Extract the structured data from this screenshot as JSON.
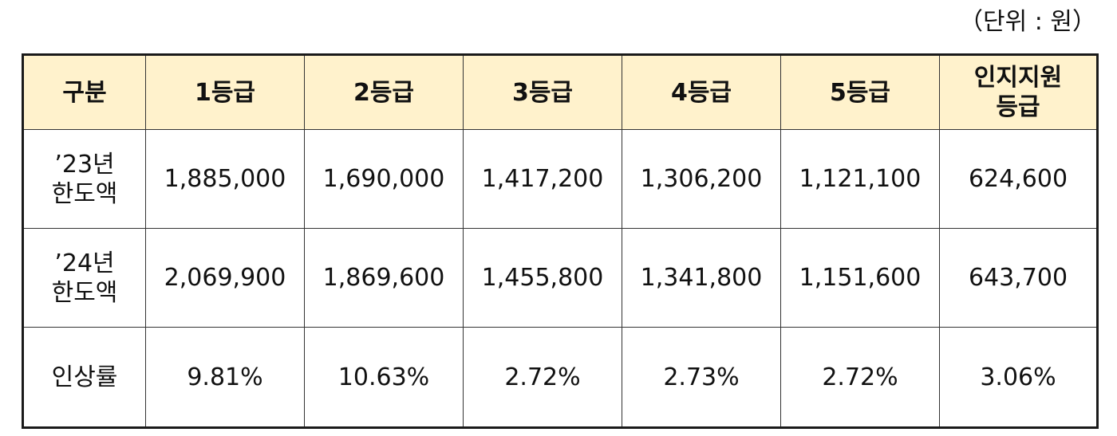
{
  "unit_note": "（단위 : 원）",
  "table": {
    "headers": [
      "구분",
      "1등급",
      "2등급",
      "3등급",
      "4등급",
      "5등급",
      "인지지원\n등급"
    ],
    "rows": [
      {
        "label": "’23년\n한도액",
        "cells": [
          "1,885,000",
          "1,690,000",
          "1,417,200",
          "1,306,200",
          "1,121,100",
          "624,600"
        ]
      },
      {
        "label": "’24년\n한도액",
        "cells": [
          "2,069,900",
          "1,869,600",
          "1,455,800",
          "1,341,800",
          "1,151,600",
          "643,700"
        ]
      },
      {
        "label": "인상률",
        "cells": [
          "9.81%",
          "10.63%",
          "2.72%",
          "2.73%",
          "2.72%",
          "3.06%"
        ]
      }
    ]
  },
  "colors": {
    "header_background": "#fff2cc",
    "border": "#1a1a1a"
  }
}
